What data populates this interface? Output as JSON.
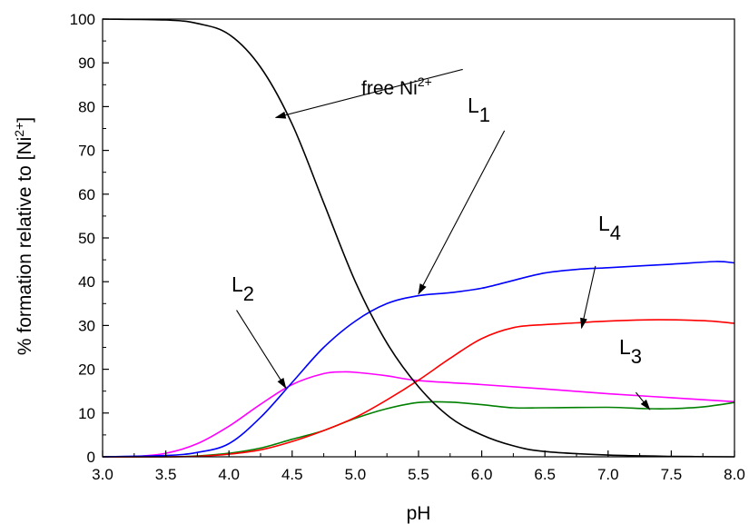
{
  "chart_data": {
    "type": "line",
    "xlabel": "pH",
    "ylabel": {
      "main": "% formation relative to [Ni",
      "sup": "2+",
      "close": "]"
    },
    "xlim": [
      3.0,
      8.0
    ],
    "ylim": [
      0,
      100
    ],
    "x_ticks": [
      "3.0",
      "3.5",
      "4.0",
      "4.5",
      "5.0",
      "5.5",
      "6.0",
      "6.5",
      "7.0",
      "7.5",
      "8.0"
    ],
    "y_ticks": [
      "0",
      "10",
      "20",
      "30",
      "40",
      "50",
      "60",
      "70",
      "80",
      "90",
      "100"
    ],
    "grid": false,
    "legend": "none",
    "series": [
      {
        "name": "free Ni2+",
        "color": "#000000",
        "points": [
          [
            3.0,
            100
          ],
          [
            3.5,
            99.8
          ],
          [
            3.75,
            99.0
          ],
          [
            4.0,
            96.5
          ],
          [
            4.25,
            89
          ],
          [
            4.5,
            76
          ],
          [
            4.75,
            58
          ],
          [
            5.0,
            40
          ],
          [
            5.25,
            26
          ],
          [
            5.5,
            16
          ],
          [
            5.75,
            9
          ],
          [
            6.0,
            5
          ],
          [
            6.25,
            2.5
          ],
          [
            6.5,
            1.2
          ],
          [
            7.0,
            0.4
          ],
          [
            7.5,
            0.1
          ],
          [
            8.0,
            0
          ]
        ]
      },
      {
        "name": "L1",
        "color": "#0000ff",
        "points": [
          [
            3.0,
            0
          ],
          [
            3.5,
            0.3
          ],
          [
            3.75,
            1.0
          ],
          [
            4.0,
            3.0
          ],
          [
            4.25,
            9
          ],
          [
            4.5,
            17
          ],
          [
            4.75,
            25
          ],
          [
            5.0,
            31
          ],
          [
            5.25,
            35
          ],
          [
            5.5,
            36.8
          ],
          [
            5.75,
            37.5
          ],
          [
            6.0,
            38.5
          ],
          [
            6.25,
            40.3
          ],
          [
            6.5,
            42
          ],
          [
            6.75,
            42.8
          ],
          [
            7.0,
            43.2
          ],
          [
            7.5,
            44.0
          ],
          [
            7.85,
            44.6
          ],
          [
            8.0,
            44.3
          ]
        ]
      },
      {
        "name": "L2",
        "color": "#ff00ff",
        "points": [
          [
            3.0,
            0
          ],
          [
            3.25,
            0.1
          ],
          [
            3.5,
            0.8
          ],
          [
            3.75,
            3
          ],
          [
            4.0,
            7
          ],
          [
            4.25,
            12
          ],
          [
            4.5,
            16.5
          ],
          [
            4.75,
            19
          ],
          [
            4.9,
            19.4
          ],
          [
            5.0,
            19.3
          ],
          [
            5.25,
            18.5
          ],
          [
            5.5,
            17.4
          ],
          [
            6.0,
            16.5
          ],
          [
            6.5,
            15.5
          ],
          [
            7.0,
            14.4
          ],
          [
            7.5,
            13.5
          ],
          [
            8.0,
            12.6
          ]
        ]
      },
      {
        "name": "L3",
        "color": "#008000",
        "points": [
          [
            3.0,
            0
          ],
          [
            3.5,
            0
          ],
          [
            3.75,
            0.2
          ],
          [
            4.0,
            0.8
          ],
          [
            4.25,
            2
          ],
          [
            4.5,
            4
          ],
          [
            4.75,
            6
          ],
          [
            5.0,
            8.8
          ],
          [
            5.25,
            11
          ],
          [
            5.5,
            12.4
          ],
          [
            5.75,
            12.5
          ],
          [
            6.0,
            11.9
          ],
          [
            6.25,
            11.2
          ],
          [
            6.5,
            11.2
          ],
          [
            7.0,
            11.3
          ],
          [
            7.3,
            11.0
          ],
          [
            7.5,
            11.0
          ],
          [
            7.75,
            11.4
          ],
          [
            8.0,
            12.4
          ]
        ]
      },
      {
        "name": "L4",
        "color": "#ff0000",
        "points": [
          [
            3.0,
            0
          ],
          [
            3.5,
            0
          ],
          [
            3.75,
            0.1
          ],
          [
            4.0,
            0.6
          ],
          [
            4.25,
            1.6
          ],
          [
            4.5,
            3.5
          ],
          [
            4.75,
            6
          ],
          [
            5.0,
            9
          ],
          [
            5.25,
            13
          ],
          [
            5.5,
            17.5
          ],
          [
            5.75,
            22.5
          ],
          [
            6.0,
            27
          ],
          [
            6.25,
            29.5
          ],
          [
            6.5,
            30.2
          ],
          [
            6.75,
            30.6
          ],
          [
            7.0,
            31.0
          ],
          [
            7.4,
            31.3
          ],
          [
            7.75,
            31.1
          ],
          [
            8.0,
            30.5
          ]
        ]
      }
    ],
    "annotations": [
      {
        "id": "free",
        "text": "free Ni",
        "sup": "2+",
        "arrow_from": [
          5.85,
          88.5
        ],
        "arrow_to": [
          4.37,
          77.5
        ]
      },
      {
        "id": "l1",
        "text": "L",
        "sub": "1",
        "arrow_from": [
          6.18,
          74.5
        ],
        "arrow_to": [
          5.5,
          37.2
        ]
      },
      {
        "id": "l2",
        "text": "L",
        "sub": "2",
        "arrow_from": [
          4.06,
          33.5
        ],
        "arrow_to": [
          4.45,
          15.7
        ]
      },
      {
        "id": "l3",
        "text": "L",
        "sub": "3",
        "arrow_from": [
          7.22,
          14.7
        ],
        "arrow_to": [
          7.33,
          10.8
        ]
      },
      {
        "id": "l4",
        "text": "L",
        "sub": "4",
        "arrow_from": [
          6.9,
          43.6
        ],
        "arrow_to": [
          6.79,
          29.4
        ]
      }
    ]
  }
}
